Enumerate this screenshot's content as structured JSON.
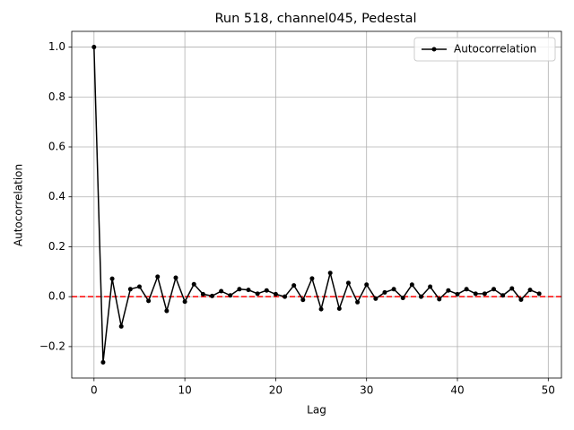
{
  "chart_data": {
    "type": "line",
    "title": "Run 518, channel045, Pedestal",
    "x_label": "Lag",
    "y_label": "Autocorrelation",
    "x": [
      0,
      1,
      2,
      3,
      4,
      5,
      6,
      7,
      8,
      9,
      10,
      11,
      12,
      13,
      14,
      15,
      16,
      17,
      18,
      19,
      20,
      21,
      22,
      23,
      24,
      25,
      26,
      27,
      28,
      29,
      30,
      31,
      32,
      33,
      34,
      35,
      36,
      37,
      38,
      39,
      40,
      41,
      42,
      43,
      44,
      45,
      46,
      47,
      48,
      49
    ],
    "series": [
      {
        "name": "Autocorrelation",
        "color": "#000000",
        "values": [
          1.0,
          -0.263,
          0.072,
          -0.119,
          0.03,
          0.04,
          -0.017,
          0.08,
          -0.057,
          0.076,
          -0.02,
          0.05,
          0.01,
          0.003,
          0.022,
          0.005,
          0.03,
          0.027,
          0.012,
          0.025,
          0.01,
          0.0,
          0.045,
          -0.013,
          0.073,
          -0.05,
          0.095,
          -0.048,
          0.055,
          -0.022,
          0.048,
          -0.008,
          0.017,
          0.03,
          -0.005,
          0.048,
          0.0,
          0.04,
          -0.01,
          0.025,
          0.01,
          0.03,
          0.012,
          0.012,
          0.03,
          0.005,
          0.033,
          -0.012,
          0.027,
          0.012
        ]
      }
    ],
    "reference_line": {
      "value": 0,
      "color": "#ff0000"
    },
    "xlim": [
      -2.45,
      51.45
    ],
    "xticks": [
      0,
      10,
      20,
      30,
      40,
      50
    ],
    "ylim": [
      -0.326,
      1.063
    ],
    "yticks": [
      {
        "value": -0.2,
        "label": "−0.2"
      },
      {
        "value": 0,
        "label": "0.0"
      },
      {
        "value": 0.2,
        "label": "0.2"
      },
      {
        "value": 0.4,
        "label": "0.4"
      },
      {
        "value": 0.6,
        "label": "0.6"
      },
      {
        "value": 0.8,
        "label": "0.8"
      },
      {
        "value": 1.0,
        "label": "1.0"
      }
    ],
    "grid": true,
    "legend": "upper right"
  }
}
